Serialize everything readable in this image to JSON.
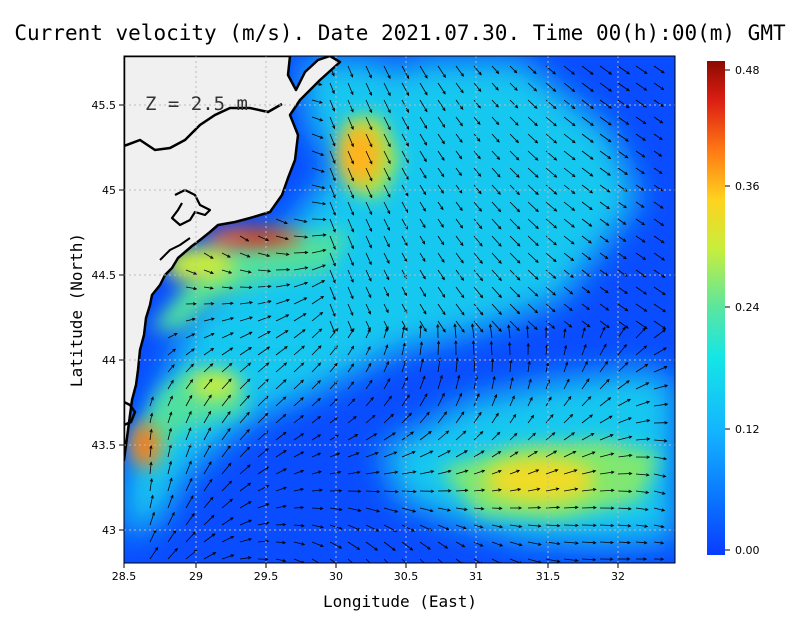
{
  "title": "Current velocity (m/s). Date 2021.07.30. Time 00(h):00(m) GMT",
  "depth_label": "Z = 2.5 m",
  "x_axis": {
    "label": "Longitude (East)",
    "range": [
      28.5,
      32.4
    ],
    "ticks": [
      "28.5",
      "29",
      "29.5",
      "30",
      "30.5",
      "31",
      "31.5",
      "32"
    ]
  },
  "y_axis": {
    "label": "Latitude (North)",
    "range": [
      42.8,
      45.8
    ],
    "ticks": [
      "43",
      "43.5",
      "44",
      "44.5",
      "45",
      "45.5"
    ]
  },
  "colorbar": {
    "min": 0.0,
    "max": 0.48,
    "ticks": [
      "0.00",
      "0.12",
      "0.24",
      "0.36",
      "0.48"
    ],
    "colors": [
      "#0a3cff",
      "#0a78ff",
      "#14c8f0",
      "#50e0a0",
      "#c8ee3c",
      "#ffcc1e",
      "#ff6414",
      "#dc1414",
      "#8c0a00"
    ]
  },
  "colors": {
    "land": "#f0f0f0",
    "coastline": "#000000",
    "grid": "#bbbbbb",
    "vectors": "#000000"
  },
  "chart_data": {
    "type": "heatmap",
    "variable": "current velocity (m/s)",
    "x": [
      28.5,
      29.0,
      29.5,
      30.0,
      30.5,
      31.0,
      31.5,
      32.0
    ],
    "y": [
      43.0,
      43.5,
      44.0,
      44.5,
      45.0,
      45.5
    ],
    "value_range": [
      0.0,
      0.48
    ],
    "features": [
      {
        "lon": 29.55,
        "lat": 44.75,
        "speed": 0.47
      },
      {
        "lon": 30.25,
        "lat": 45.2,
        "speed": 0.36
      },
      {
        "lon": 28.6,
        "lat": 43.5,
        "speed": 0.4
      },
      {
        "lon": 31.5,
        "lat": 43.3,
        "speed": 0.3
      },
      {
        "lon": 29.0,
        "lat": 44.4,
        "speed": 0.28
      }
    ]
  }
}
